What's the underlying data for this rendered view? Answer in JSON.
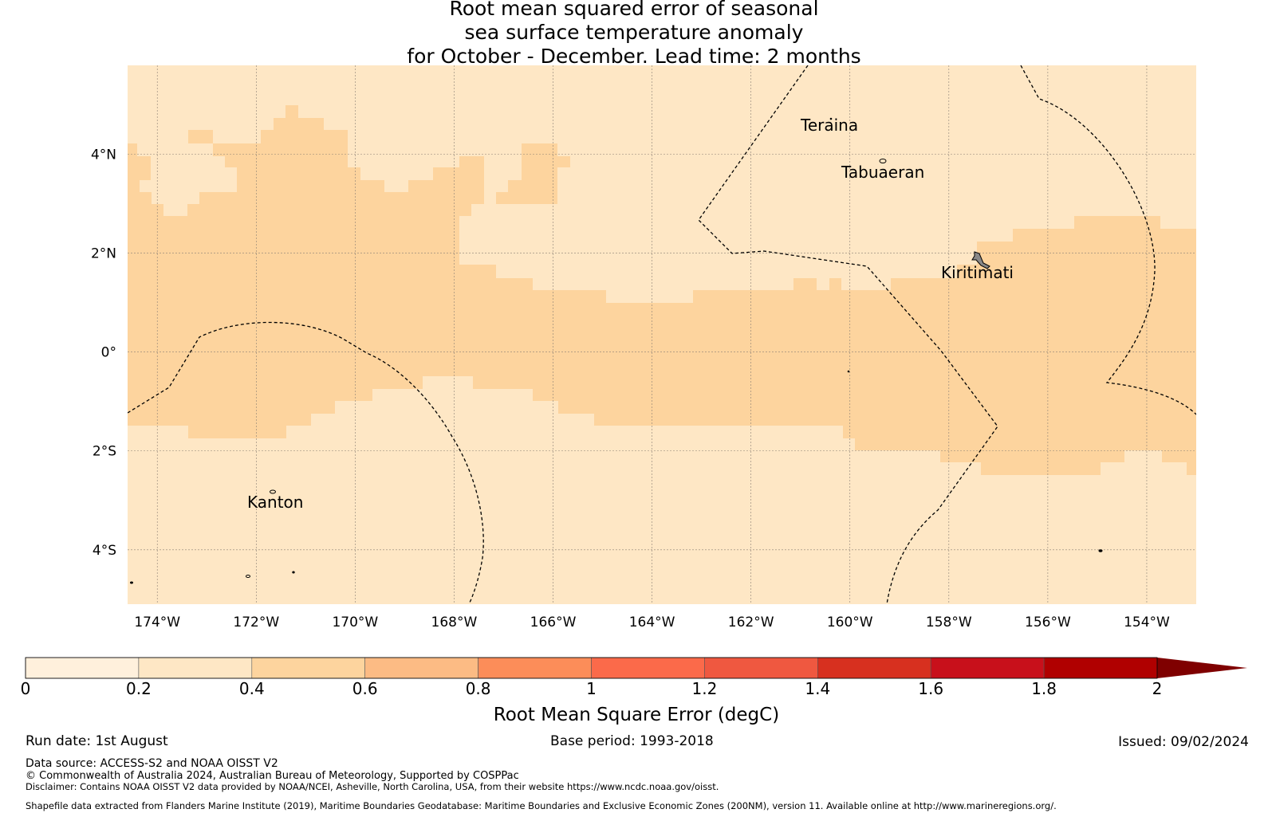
{
  "title": {
    "lines": [
      "Root mean squared error of seasonal",
      "sea surface temperature anomaly",
      "for October - December. Lead time: 2 months"
    ]
  },
  "map": {
    "lon_range": [
      -174.6,
      -153.0
    ],
    "lat_range": [
      -5.1,
      5.8
    ],
    "x_ticks": [
      {
        "value": -174,
        "label": "174°W"
      },
      {
        "value": -172,
        "label": "172°W"
      },
      {
        "value": -170,
        "label": "170°W"
      },
      {
        "value": -168,
        "label": "168°W"
      },
      {
        "value": -166,
        "label": "166°W"
      },
      {
        "value": -164,
        "label": "164°W"
      },
      {
        "value": -162,
        "label": "162°W"
      },
      {
        "value": -160,
        "label": "160°W"
      },
      {
        "value": -158,
        "label": "158°W"
      },
      {
        "value": -156,
        "label": "156°W"
      },
      {
        "value": -154,
        "label": "154°W"
      }
    ],
    "y_ticks": [
      {
        "value": 4,
        "label": "4°N"
      },
      {
        "value": 2,
        "label": "2°N"
      },
      {
        "value": 0,
        "label": "0°"
      },
      {
        "value": -2,
        "label": "2°S"
      },
      {
        "value": -4,
        "label": "4°S"
      }
    ],
    "grid": true,
    "background_class": "0.2-0.4",
    "islands": [
      {
        "name": "Teraina",
        "lon": -160.4,
        "lat": 4.68
      },
      {
        "name": "Tabuaeran",
        "lon": -159.35,
        "lat": 3.86
      },
      {
        "name": "Kiritimati",
        "lon": -157.4,
        "lat": 1.87
      },
      {
        "name": "Kanton",
        "lon": -171.7,
        "lat": -2.82
      }
    ],
    "high_error_region": {
      "class": "0.4-0.6",
      "description_only_visual": true
    }
  },
  "colorbar": {
    "label": "Root Mean Square Error (degC)",
    "ticks": [
      "0",
      "0.2",
      "0.4",
      "0.6",
      "0.8",
      "1",
      "1.2",
      "1.4",
      "1.6",
      "1.8",
      "2"
    ],
    "colors": [
      "#fff0dc",
      "#fee7c5",
      "#fdd49e",
      "#fcbb84",
      "#fc8d59",
      "#fb6a4a",
      "#ef5840",
      "#d7301f",
      "#c8101b",
      "#b00000"
    ],
    "extend_color": "#7f0000"
  },
  "footer": {
    "run_date": "Run date: 1st August",
    "base_period": "Base period: 1993-2018",
    "issued": "Issued: 09/02/2024",
    "data_source": "Data source: ACCESS-S2 and NOAA OISST V2",
    "copyright": "© Commonwealth of Australia 2024, Australian Bureau of Meteorology, Supported by COSPPac",
    "disclaimer": "Disclaimer: Contains NOAA OISST V2 data provided by NOAA/NCEI, Asheville, North Carolina, USA, from their website https://www.ncdc.noaa.gov/oisst.",
    "shapefile": "Shapefile data extracted from Flanders Marine Institute (2019), Maritime Boundaries Geodatabase: Maritime Boundaries and Exclusive Economic Zones (200NM), version 11. Available online at http://www.marineregions.org/."
  }
}
